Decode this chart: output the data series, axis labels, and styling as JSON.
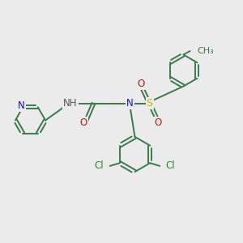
{
  "bg_color": "#ebebeb",
  "bond_color": "#3a7a4a",
  "n_color": "#1010cc",
  "o_color": "#cc1010",
  "s_color": "#bbbb00",
  "cl_color": "#2a8a2a",
  "h_color": "#555555",
  "font_size": 8.5,
  "linewidth": 1.4,
  "figsize": [
    3.0,
    3.0
  ],
  "dpi": 100,
  "xlim": [
    0,
    10
  ],
  "ylim": [
    0,
    10
  ]
}
